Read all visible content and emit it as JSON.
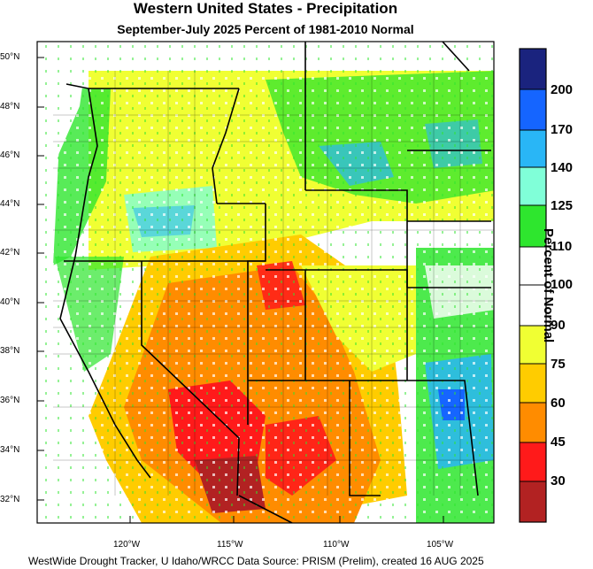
{
  "header": {
    "title": "Western United States - Precipitation",
    "subtitle": "September-July 2025  Percent of 1981-2010 Normal"
  },
  "map": {
    "lat_labels": [
      "50°N",
      "48°N",
      "46°N",
      "44°N",
      "42°N",
      "40°N",
      "38°N",
      "36°N",
      "34°N",
      "32°N"
    ],
    "lon_labels": [
      "120°W",
      "115°W",
      "110°W",
      "105°W"
    ]
  },
  "colorbar": {
    "title": "Percent of Normal",
    "labels": [
      "200",
      "170",
      "140",
      "125",
      "110",
      "100",
      "90",
      "75",
      "60",
      "45",
      "30"
    ],
    "colors": [
      "#1a237e",
      "#1565ff",
      "#29b6f6",
      "#80ffd8",
      "#2ee62e",
      "#ffffff",
      "#ffffff",
      "#f0ff33",
      "#ffcc00",
      "#ff8c00",
      "#ff1a1a",
      "#b22222"
    ]
  },
  "footer": {
    "credit": "WestWide Drought Tracker, U Idaho/WRCC Data Source: PRISM (Prelim), created 16 AUG 2025"
  }
}
